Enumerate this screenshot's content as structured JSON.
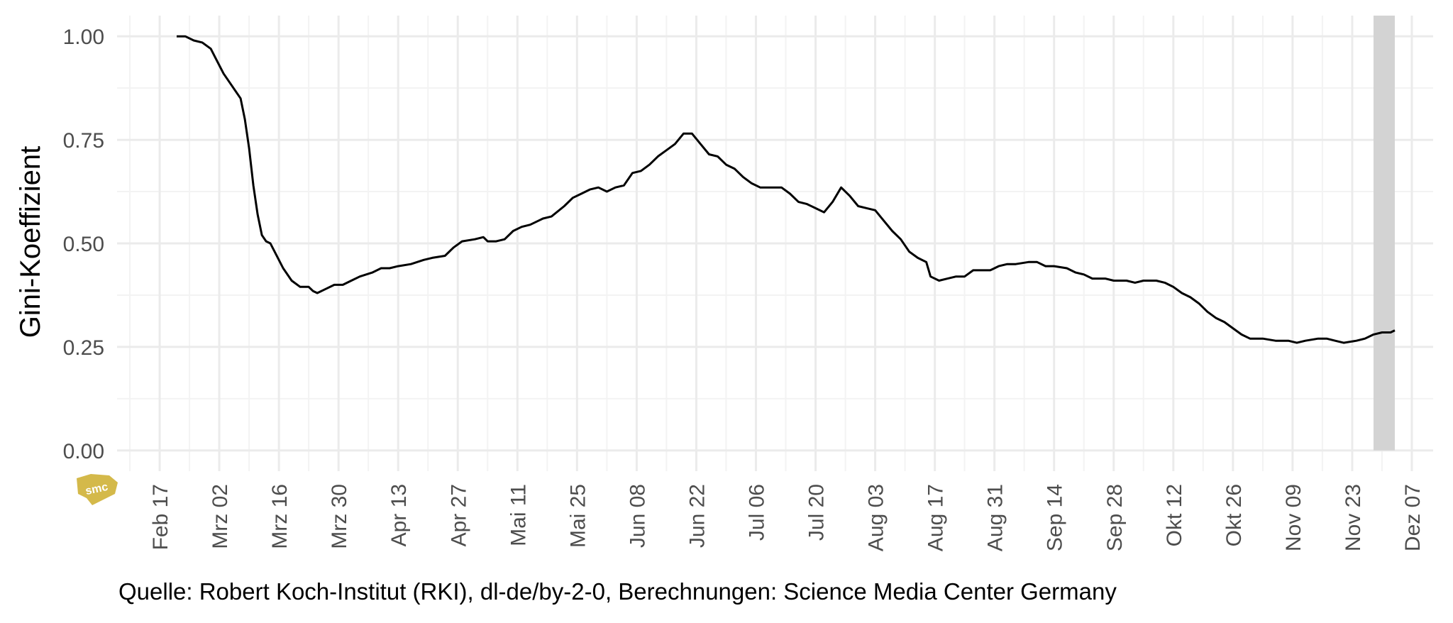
{
  "chart_data": {
    "type": "line",
    "ylabel": "Gini-Koeffizient",
    "caption": "Quelle: Robert Koch-Institut (RKI), dl-de/by-2-0, Berechnungen: Science Media Center Germany",
    "logo_text": "smc",
    "ylim": [
      -0.05,
      1.05
    ],
    "yticks": [
      "0.00",
      "0.25",
      "0.50",
      "0.75",
      "1.00"
    ],
    "xlim": [
      "2020-02-07",
      "2020-12-12"
    ],
    "xticks": [
      {
        "date": "2020-02-17",
        "label": "Feb 17"
      },
      {
        "date": "2020-03-02",
        "label": "Mrz 02"
      },
      {
        "date": "2020-03-16",
        "label": "Mrz 16"
      },
      {
        "date": "2020-03-30",
        "label": "Mrz 30"
      },
      {
        "date": "2020-04-13",
        "label": "Apr 13"
      },
      {
        "date": "2020-04-27",
        "label": "Apr 27"
      },
      {
        "date": "2020-05-11",
        "label": "Mai 11"
      },
      {
        "date": "2020-05-25",
        "label": "Mai 25"
      },
      {
        "date": "2020-06-08",
        "label": "Jun 08"
      },
      {
        "date": "2020-06-22",
        "label": "Jun 22"
      },
      {
        "date": "2020-07-06",
        "label": "Jul 06"
      },
      {
        "date": "2020-07-20",
        "label": "Jul 20"
      },
      {
        "date": "2020-08-03",
        "label": "Aug 03"
      },
      {
        "date": "2020-08-17",
        "label": "Aug 17"
      },
      {
        "date": "2020-08-31",
        "label": "Aug 31"
      },
      {
        "date": "2020-09-14",
        "label": "Sep 14"
      },
      {
        "date": "2020-09-28",
        "label": "Sep 28"
      },
      {
        "date": "2020-10-12",
        "label": "Okt 12"
      },
      {
        "date": "2020-10-26",
        "label": "Okt 26"
      },
      {
        "date": "2020-11-09",
        "label": "Nov 09"
      },
      {
        "date": "2020-11-23",
        "label": "Nov 23"
      },
      {
        "date": "2020-12-07",
        "label": "Dez 07"
      }
    ],
    "shaded_region": [
      "2020-11-28",
      "2020-12-03"
    ],
    "colors": {
      "line": "#000000",
      "shade": "#d3d3d3",
      "grid_major": "#ebebeb",
      "grid_minor": "#f3f3f3",
      "logo": "#d4b94a"
    },
    "grid": true,
    "series": [
      {
        "points": [
          [
            "2020-02-21",
            1.0
          ],
          [
            "2020-02-23",
            1.0
          ],
          [
            "2020-02-25",
            0.99
          ],
          [
            "2020-02-27",
            0.985
          ],
          [
            "2020-02-29",
            0.97
          ],
          [
            "2020-03-01",
            0.95
          ],
          [
            "2020-03-03",
            0.91
          ],
          [
            "2020-03-05",
            0.88
          ],
          [
            "2020-03-07",
            0.85
          ],
          [
            "2020-03-08",
            0.8
          ],
          [
            "2020-03-09",
            0.73
          ],
          [
            "2020-03-10",
            0.64
          ],
          [
            "2020-03-11",
            0.57
          ],
          [
            "2020-03-12",
            0.52
          ],
          [
            "2020-03-13",
            0.505
          ],
          [
            "2020-03-14",
            0.5
          ],
          [
            "2020-03-15",
            0.48
          ],
          [
            "2020-03-17",
            0.44
          ],
          [
            "2020-03-19",
            0.41
          ],
          [
            "2020-03-21",
            0.395
          ],
          [
            "2020-03-23",
            0.395
          ],
          [
            "2020-03-24",
            0.385
          ],
          [
            "2020-03-25",
            0.38
          ],
          [
            "2020-03-27",
            0.39
          ],
          [
            "2020-03-29",
            0.4
          ],
          [
            "2020-03-31",
            0.4
          ],
          [
            "2020-04-02",
            0.41
          ],
          [
            "2020-04-04",
            0.42
          ],
          [
            "2020-04-07",
            0.43
          ],
          [
            "2020-04-09",
            0.44
          ],
          [
            "2020-04-11",
            0.44
          ],
          [
            "2020-04-13",
            0.445
          ],
          [
            "2020-04-16",
            0.45
          ],
          [
            "2020-04-19",
            0.46
          ],
          [
            "2020-04-21",
            0.465
          ],
          [
            "2020-04-24",
            0.47
          ],
          [
            "2020-04-26",
            0.49
          ],
          [
            "2020-04-28",
            0.505
          ],
          [
            "2020-05-01",
            0.51
          ],
          [
            "2020-05-03",
            0.515
          ],
          [
            "2020-05-04",
            0.505
          ],
          [
            "2020-05-06",
            0.505
          ],
          [
            "2020-05-08",
            0.51
          ],
          [
            "2020-05-10",
            0.53
          ],
          [
            "2020-05-12",
            0.54
          ],
          [
            "2020-05-14",
            0.545
          ],
          [
            "2020-05-17",
            0.56
          ],
          [
            "2020-05-19",
            0.565
          ],
          [
            "2020-05-22",
            0.59
          ],
          [
            "2020-05-24",
            0.61
          ],
          [
            "2020-05-26",
            0.62
          ],
          [
            "2020-05-28",
            0.63
          ],
          [
            "2020-05-30",
            0.635
          ],
          [
            "2020-06-01",
            0.625
          ],
          [
            "2020-06-03",
            0.635
          ],
          [
            "2020-06-05",
            0.64
          ],
          [
            "2020-06-07",
            0.67
          ],
          [
            "2020-06-09",
            0.675
          ],
          [
            "2020-06-11",
            0.69
          ],
          [
            "2020-06-13",
            0.71
          ],
          [
            "2020-06-15",
            0.725
          ],
          [
            "2020-06-17",
            0.74
          ],
          [
            "2020-06-19",
            0.765
          ],
          [
            "2020-06-21",
            0.765
          ],
          [
            "2020-06-23",
            0.74
          ],
          [
            "2020-06-25",
            0.715
          ],
          [
            "2020-06-27",
            0.71
          ],
          [
            "2020-06-29",
            0.69
          ],
          [
            "2020-07-01",
            0.68
          ],
          [
            "2020-07-03",
            0.66
          ],
          [
            "2020-07-05",
            0.645
          ],
          [
            "2020-07-07",
            0.635
          ],
          [
            "2020-07-09",
            0.635
          ],
          [
            "2020-07-12",
            0.635
          ],
          [
            "2020-07-14",
            0.62
          ],
          [
            "2020-07-16",
            0.6
          ],
          [
            "2020-07-18",
            0.595
          ],
          [
            "2020-07-20",
            0.585
          ],
          [
            "2020-07-22",
            0.575
          ],
          [
            "2020-07-24",
            0.6
          ],
          [
            "2020-07-26",
            0.635
          ],
          [
            "2020-07-28",
            0.615
          ],
          [
            "2020-07-30",
            0.59
          ],
          [
            "2020-08-01",
            0.585
          ],
          [
            "2020-08-03",
            0.58
          ],
          [
            "2020-08-05",
            0.555
          ],
          [
            "2020-08-07",
            0.53
          ],
          [
            "2020-08-09",
            0.51
          ],
          [
            "2020-08-11",
            0.48
          ],
          [
            "2020-08-13",
            0.465
          ],
          [
            "2020-08-15",
            0.455
          ],
          [
            "2020-08-16",
            0.42
          ],
          [
            "2020-08-18",
            0.41
          ],
          [
            "2020-08-20",
            0.415
          ],
          [
            "2020-08-22",
            0.42
          ],
          [
            "2020-08-24",
            0.42
          ],
          [
            "2020-08-26",
            0.435
          ],
          [
            "2020-08-28",
            0.435
          ],
          [
            "2020-08-30",
            0.435
          ],
          [
            "2020-09-01",
            0.445
          ],
          [
            "2020-09-03",
            0.45
          ],
          [
            "2020-09-05",
            0.45
          ],
          [
            "2020-09-08",
            0.455
          ],
          [
            "2020-09-10",
            0.455
          ],
          [
            "2020-09-12",
            0.445
          ],
          [
            "2020-09-14",
            0.445
          ],
          [
            "2020-09-17",
            0.44
          ],
          [
            "2020-09-19",
            0.43
          ],
          [
            "2020-09-21",
            0.425
          ],
          [
            "2020-09-23",
            0.415
          ],
          [
            "2020-09-26",
            0.415
          ],
          [
            "2020-09-28",
            0.41
          ],
          [
            "2020-10-01",
            0.41
          ],
          [
            "2020-10-03",
            0.405
          ],
          [
            "2020-10-05",
            0.41
          ],
          [
            "2020-10-08",
            0.41
          ],
          [
            "2020-10-10",
            0.405
          ],
          [
            "2020-10-12",
            0.395
          ],
          [
            "2020-10-14",
            0.38
          ],
          [
            "2020-10-16",
            0.37
          ],
          [
            "2020-10-18",
            0.355
          ],
          [
            "2020-10-20",
            0.335
          ],
          [
            "2020-10-22",
            0.32
          ],
          [
            "2020-10-24",
            0.31
          ],
          [
            "2020-10-26",
            0.295
          ],
          [
            "2020-10-28",
            0.28
          ],
          [
            "2020-10-30",
            0.27
          ],
          [
            "2020-11-02",
            0.27
          ],
          [
            "2020-11-05",
            0.265
          ],
          [
            "2020-11-08",
            0.265
          ],
          [
            "2020-11-10",
            0.26
          ],
          [
            "2020-11-12",
            0.265
          ],
          [
            "2020-11-15",
            0.27
          ],
          [
            "2020-11-17",
            0.27
          ],
          [
            "2020-11-19",
            0.265
          ],
          [
            "2020-11-21",
            0.26
          ],
          [
            "2020-11-24",
            0.265
          ],
          [
            "2020-11-26",
            0.27
          ],
          [
            "2020-11-28",
            0.28
          ],
          [
            "2020-11-30",
            0.285
          ],
          [
            "2020-12-02",
            0.285
          ],
          [
            "2020-12-03",
            0.29
          ]
        ]
      }
    ]
  }
}
